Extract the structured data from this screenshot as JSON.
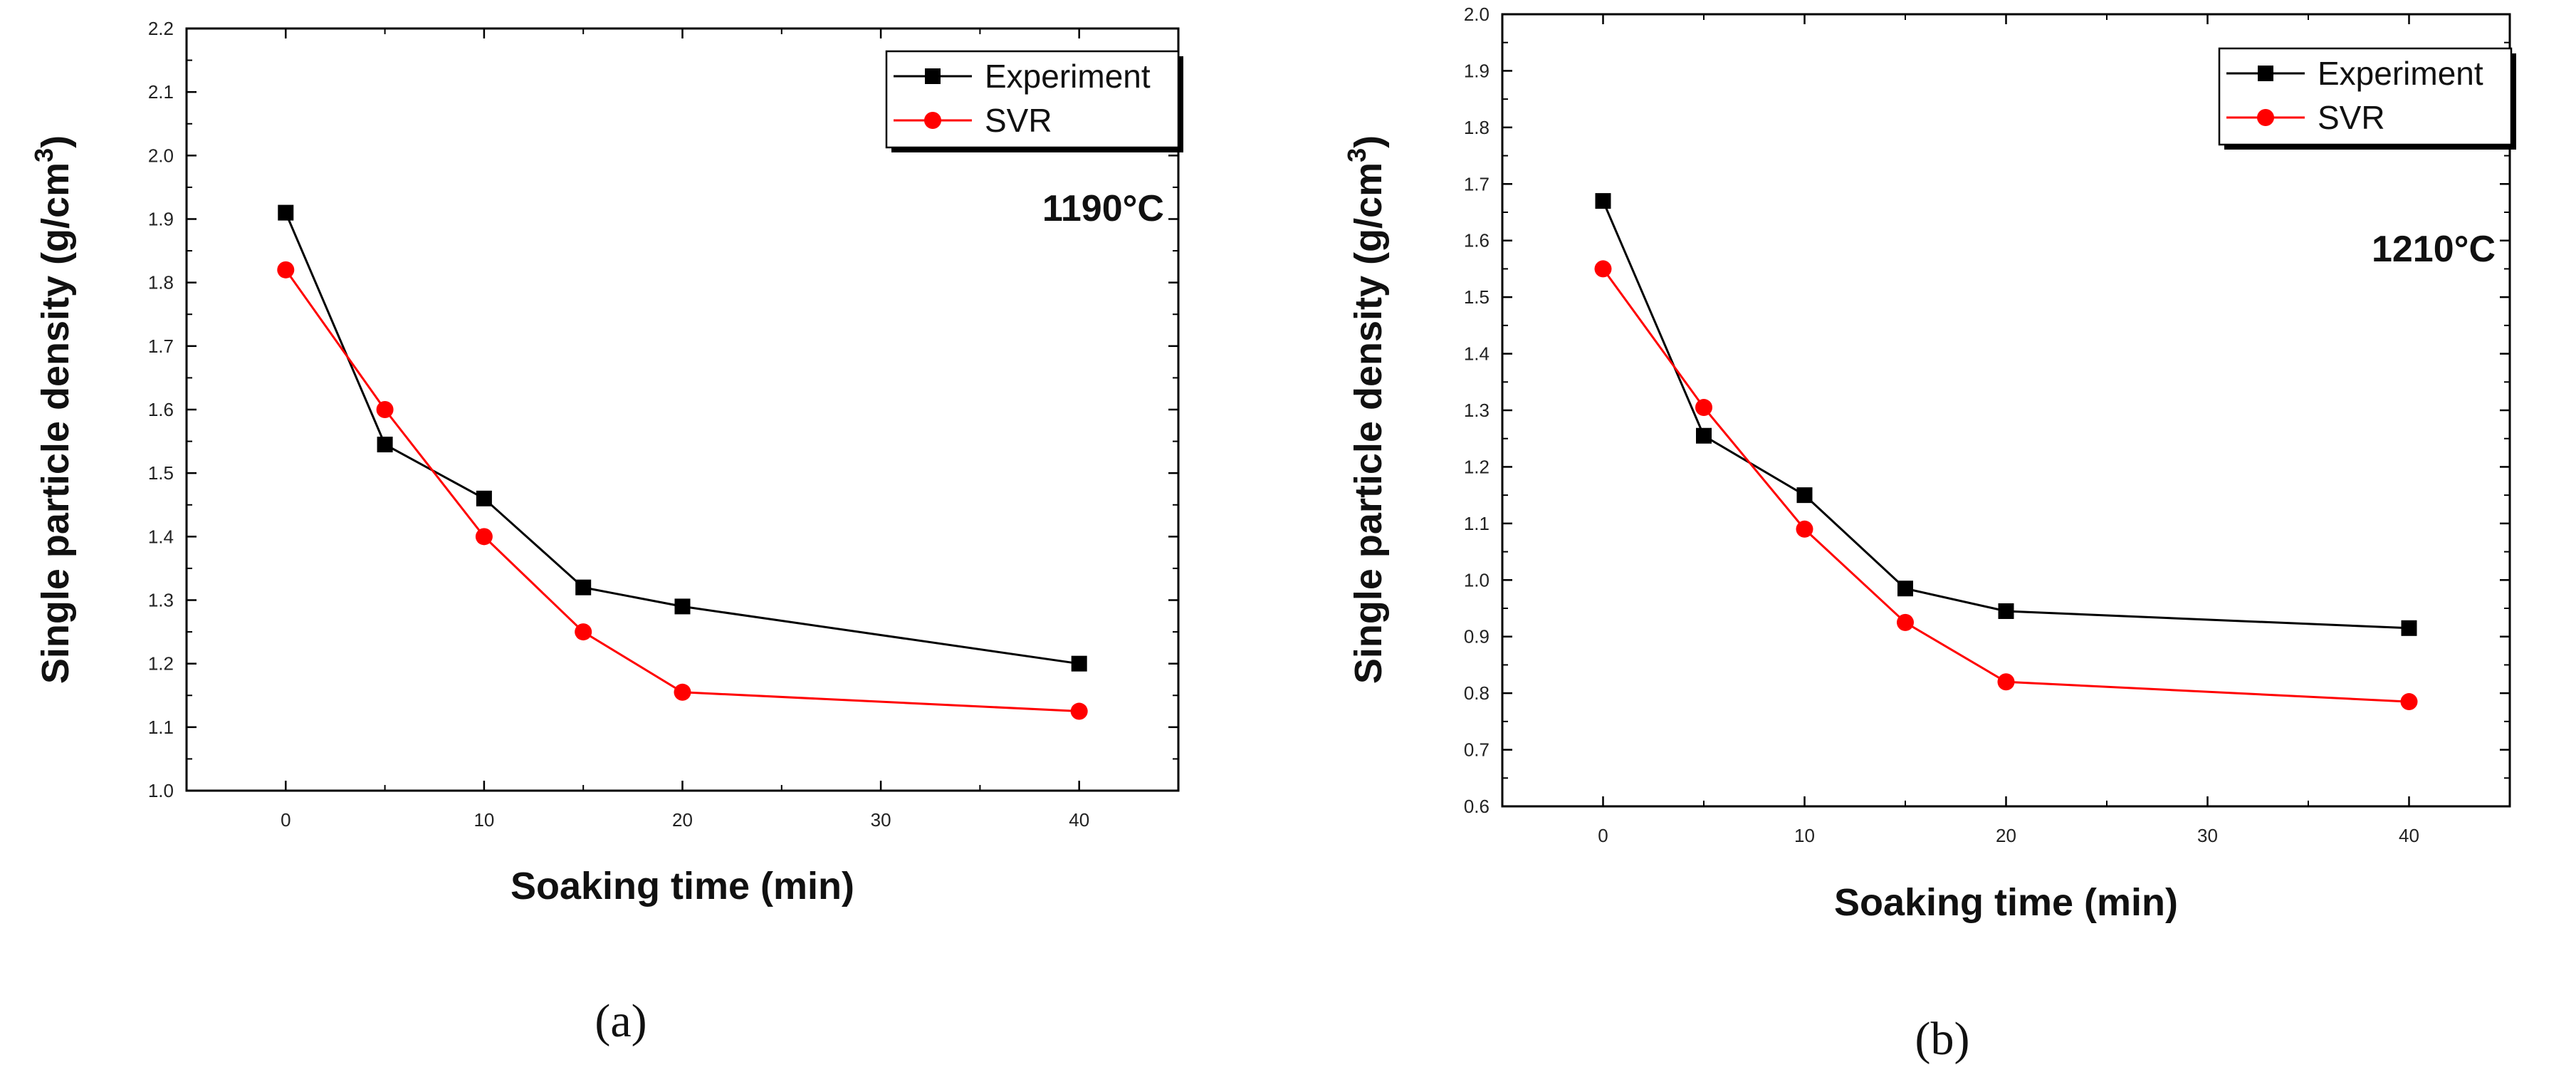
{
  "chart_data": [
    {
      "type": "line",
      "panel_label": "(a)",
      "annotation": "1190°C",
      "xlabel": "Soaking time (min)",
      "ylabel": "Single particle density (g/cm",
      "ylabel_sup": "3",
      "ylabel_close": ")",
      "xlim": [
        -5,
        45
      ],
      "ylim": [
        1.0,
        2.2
      ],
      "xticks": [
        0,
        10,
        20,
        30,
        40
      ],
      "xtick_labels": [
        "0",
        "10",
        "20",
        "30",
        "40"
      ],
      "yticks": [
        1.0,
        1.1,
        1.2,
        1.3,
        1.4,
        1.5,
        1.6,
        1.7,
        1.8,
        1.9,
        2.0,
        2.1,
        2.2
      ],
      "ytick_labels": [
        "1.0",
        "1.1",
        "1.2",
        "1.3",
        "1.4",
        "1.5",
        "1.6",
        "1.7",
        "1.8",
        "1.9",
        "2.0",
        "2.1",
        "2.2"
      ],
      "legend_position": "top-right",
      "series": [
        {
          "name": "Experiment",
          "color": "#000000",
          "marker": "square",
          "x": [
            0,
            5,
            10,
            15,
            20,
            40
          ],
          "y": [
            1.91,
            1.545,
            1.46,
            1.32,
            1.29,
            1.2
          ]
        },
        {
          "name": "SVR",
          "color": "#ff0000",
          "marker": "circle",
          "x": [
            0,
            5,
            10,
            15,
            20,
            40
          ],
          "y": [
            1.82,
            1.6,
            1.4,
            1.25,
            1.155,
            1.125
          ]
        }
      ]
    },
    {
      "type": "line",
      "panel_label": "(b)",
      "annotation": "1210°C",
      "xlabel": "Soaking time (min)",
      "ylabel": "Single particle density (g/cm",
      "ylabel_sup": "3",
      "ylabel_close": ")",
      "xlim": [
        -5,
        45
      ],
      "ylim": [
        0.6,
        2.0
      ],
      "xticks": [
        0,
        10,
        20,
        30,
        40
      ],
      "xtick_labels": [
        "0",
        "10",
        "20",
        "30",
        "40"
      ],
      "yticks": [
        0.6,
        0.7,
        0.8,
        0.9,
        1.0,
        1.1,
        1.2,
        1.3,
        1.4,
        1.5,
        1.6,
        1.7,
        1.8,
        1.9,
        2.0
      ],
      "ytick_labels": [
        "0.6",
        "0.7",
        "0.8",
        "0.9",
        "1.0",
        "1.1",
        "1.2",
        "1.3",
        "1.4",
        "1.5",
        "1.6",
        "1.7",
        "1.8",
        "1.9",
        "2.0"
      ],
      "legend_position": "top-right",
      "series": [
        {
          "name": "Experiment",
          "color": "#000000",
          "marker": "square",
          "x": [
            0,
            5,
            10,
            15,
            20,
            40
          ],
          "y": [
            1.67,
            1.255,
            1.15,
            0.985,
            0.945,
            0.915
          ]
        },
        {
          "name": "SVR",
          "color": "#ff0000",
          "marker": "circle",
          "x": [
            0,
            5,
            10,
            15,
            20,
            40
          ],
          "y": [
            1.55,
            1.305,
            1.09,
            0.925,
            0.82,
            0.785
          ]
        }
      ]
    }
  ]
}
